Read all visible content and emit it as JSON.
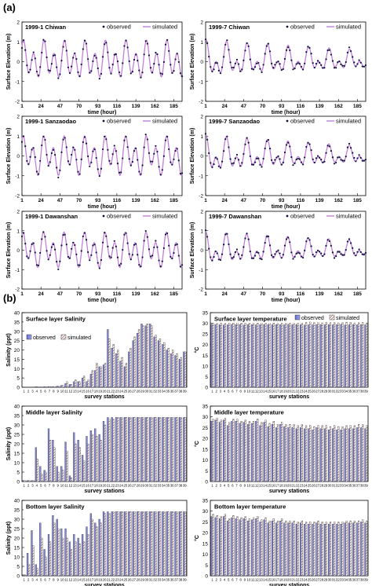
{
  "figure": {
    "section_a_label": "(a)",
    "section_b_label": "(b)"
  },
  "elevation_common": {
    "ylabel": "Surface Elevation (m)",
    "xlabel": "time (hour)",
    "x_ticks": [
      1,
      24,
      47,
      70,
      93,
      116,
      139,
      162,
      185
    ],
    "y_ticks": [
      -2,
      -1,
      0,
      1,
      2
    ],
    "legend": [
      "observed",
      "simulated"
    ],
    "colors": {
      "observed": "#101040",
      "simulated": "#c080d8"
    }
  },
  "salinity_common": {
    "ylabel": "Salinity (ppt)",
    "xlabel": "survey stations",
    "y_ticks": [
      0,
      5,
      10,
      15,
      20,
      25,
      30,
      35,
      40
    ],
    "legend": [
      "observed",
      "simulated"
    ]
  },
  "temperature_common": {
    "ylabel": "°C",
    "xlabel": "survey stations",
    "y_ticks": [
      0,
      5,
      10,
      15,
      20,
      25,
      30,
      35
    ],
    "legend": [
      "observed",
      "simulated"
    ]
  },
  "station_labels": [
    "1",
    "2",
    "3",
    "4",
    "5",
    "6",
    "7",
    "8",
    "9",
    "10",
    "11",
    "12",
    "13",
    "14",
    "15",
    "16",
    "17",
    "18",
    "19",
    "20",
    "21",
    "22",
    "23",
    "24",
    "25",
    "26",
    "27",
    "28",
    "29",
    "30",
    "31",
    "32",
    "33",
    "34",
    "35",
    "36",
    "37",
    "38",
    "39"
  ],
  "chart_data": [
    {
      "type": "line",
      "title": "1999-1 Chiwan",
      "xlim": [
        1,
        195
      ],
      "ylim": [
        -2,
        2
      ],
      "series": [
        {
          "name": "observed",
          "params": {
            "mean": 0.05,
            "k1": 0.35,
            "m2": 0.7,
            "phase1": 0.6,
            "phase2": 0.2,
            "noise": 0.12
          }
        },
        {
          "name": "simulated",
          "params": {
            "mean": 0.05,
            "k1": 0.35,
            "m2": 0.7,
            "phase1": 0.6,
            "phase2": 0.2,
            "noise": 0
          }
        }
      ]
    },
    {
      "type": "line",
      "title": "1999-7 Chiwan",
      "xlim": [
        1,
        195
      ],
      "ylim": [
        -2,
        2
      ],
      "series": [
        {
          "name": "observed",
          "params": {
            "mean": 0.05,
            "k1": 0.55,
            "m2": 0.5,
            "phase1": 1.1,
            "phase2": 0.8,
            "noise": 0.12,
            "decay": 0.5
          }
        },
        {
          "name": "simulated",
          "params": {
            "mean": 0.05,
            "k1": 0.55,
            "m2": 0.5,
            "phase1": 1.1,
            "phase2": 0.8,
            "noise": 0,
            "decay": 0.5
          }
        }
      ]
    },
    {
      "type": "line",
      "title": "1999-1 Sanzaodao",
      "xlim": [
        1,
        195
      ],
      "ylim": [
        -2,
        2
      ],
      "series": [
        {
          "name": "observed",
          "params": {
            "mean": 0.0,
            "k1": 0.4,
            "m2": 0.7,
            "phase1": 0.3,
            "phase2": 0.5,
            "noise": 0.12
          }
        },
        {
          "name": "simulated",
          "params": {
            "mean": 0.0,
            "k1": 0.4,
            "m2": 0.7,
            "phase1": 0.3,
            "phase2": 0.5,
            "noise": 0
          }
        }
      ]
    },
    {
      "type": "line",
      "title": "1999-7 Sanzaodao",
      "xlim": [
        1,
        195
      ],
      "ylim": [
        -2,
        2
      ],
      "series": [
        {
          "name": "observed",
          "params": {
            "mean": 0.0,
            "k1": 0.55,
            "m2": 0.5,
            "phase1": 1.2,
            "phase2": 0.9,
            "noise": 0.12,
            "decay": 0.55
          }
        },
        {
          "name": "simulated",
          "params": {
            "mean": 0.0,
            "k1": 0.55,
            "m2": 0.5,
            "phase1": 1.2,
            "phase2": 0.9,
            "noise": 0,
            "decay": 0.55
          }
        }
      ]
    },
    {
      "type": "line",
      "title": "1999-1 Dawanshan",
      "xlim": [
        1,
        195
      ],
      "ylim": [
        -2,
        2
      ],
      "series": [
        {
          "name": "observed",
          "params": {
            "mean": 0.0,
            "k1": 0.35,
            "m2": 0.65,
            "phase1": 0.4,
            "phase2": 0.6,
            "noise": 0.1
          }
        },
        {
          "name": "simulated",
          "params": {
            "mean": 0.0,
            "k1": 0.35,
            "m2": 0.65,
            "phase1": 0.4,
            "phase2": 0.6,
            "noise": 0
          }
        }
      ]
    },
    {
      "type": "line",
      "title": "1999-7 Dawanshan",
      "xlim": [
        1,
        195
      ],
      "ylim": [
        -2,
        2
      ],
      "series": [
        {
          "name": "observed",
          "params": {
            "mean": 0.0,
            "k1": 0.5,
            "m2": 0.45,
            "phase1": 1.3,
            "phase2": 1.0,
            "noise": 0.1,
            "decay": 0.5
          }
        },
        {
          "name": "simulated",
          "params": {
            "mean": 0.0,
            "k1": 0.5,
            "m2": 0.45,
            "phase1": 1.3,
            "phase2": 1.0,
            "noise": 0,
            "decay": 0.5
          }
        }
      ]
    },
    {
      "type": "bar",
      "title": "Surface layer Salinity",
      "ylim": [
        0,
        40
      ],
      "series": [
        {
          "name": "observed",
          "values": [
            0,
            0,
            0,
            0.3,
            0.2,
            0.3,
            0.4,
            0.4,
            0.6,
            1,
            2,
            1.5,
            3,
            3,
            5,
            3,
            7,
            9,
            11,
            12,
            31,
            21,
            18,
            14,
            11,
            19,
            25,
            29,
            34,
            33,
            34,
            27,
            25,
            23,
            20,
            18,
            17,
            15,
            19
          ]
        },
        {
          "name": "simulated",
          "values": [
            0,
            0,
            0,
            0.3,
            0.2,
            0.3,
            0.4,
            0.4,
            0.6,
            1,
            3,
            1.5,
            4,
            3,
            6,
            4,
            9,
            13,
            11,
            13,
            26,
            23,
            20,
            16,
            13,
            21,
            27,
            31,
            33,
            34,
            33,
            28,
            26,
            24,
            21,
            20,
            18,
            16,
            19
          ]
        }
      ]
    },
    {
      "type": "bar",
      "title": "Surface layer temperature",
      "ylim": [
        0,
        35
      ],
      "series": [
        {
          "name": "observed",
          "values": [
            29.5,
            29.4,
            29.3,
            29.2,
            29.3,
            29.5,
            29.4,
            29.4,
            29.2,
            29.4,
            29.4,
            29.3,
            29.3,
            29.4,
            29.4,
            29.3,
            29.4,
            29.4,
            29.3,
            29.5,
            29.3,
            29.4,
            29.3,
            29.2,
            29.3,
            29.3,
            29.4,
            29.4,
            29.3,
            29.4,
            29.3,
            29.4,
            29.5,
            29.2,
            29.3,
            29.4,
            29.3,
            29.4,
            29.3
          ]
        },
        {
          "name": "simulated",
          "values": [
            30.2,
            30.5,
            30.1,
            30.3,
            30.4,
            30.2,
            30.5,
            30.2,
            30.1,
            30.3,
            30.4,
            30.2,
            30.5,
            30.3,
            30.4,
            30.2,
            30.6,
            30.3,
            30.2,
            30.4,
            30.5,
            30.3,
            30.2,
            30.4,
            30.6,
            30.3,
            30.4,
            30.2,
            30.5,
            30.3,
            30.4,
            30.2,
            30.3,
            30.5,
            30.4,
            30.2,
            30.3,
            30.4,
            30.2
          ]
        }
      ]
    },
    {
      "type": "bar",
      "title": "Middle layer Salinity",
      "ylim": [
        0,
        40
      ],
      "series": [
        {
          "name": "observed",
          "values": [
            0.5,
            0.5,
            0.5,
            18,
            8,
            6,
            28,
            22,
            8,
            8,
            21,
            3,
            26,
            22,
            14,
            24,
            27,
            28,
            25,
            32,
            34,
            34,
            34,
            34,
            34,
            34,
            34,
            34,
            34,
            34,
            34,
            34,
            34,
            34,
            34,
            34,
            34,
            34,
            34
          ]
        },
        {
          "name": "simulated",
          "values": [
            0.5,
            0.5,
            0.5,
            12,
            4,
            5,
            22,
            18,
            5,
            6,
            16,
            2,
            20,
            18,
            11,
            20,
            25,
            24,
            22,
            30,
            33,
            33,
            34,
            34,
            34,
            34,
            34,
            34,
            34,
            34,
            34,
            34,
            34,
            34,
            34,
            34,
            34,
            34,
            34
          ]
        }
      ]
    },
    {
      "type": "bar",
      "title": "Middle layer temperature",
      "ylim": [
        0,
        35
      ],
      "series": [
        {
          "name": "observed",
          "values": [
            28,
            28.5,
            27.5,
            28.5,
            26,
            28,
            28,
            27,
            27.5,
            26.5,
            27,
            28,
            26,
            27.5,
            25.5,
            26.5,
            25,
            26.5,
            25.5,
            25,
            25,
            24.5,
            25,
            24.5,
            24.5,
            24,
            25,
            24.5,
            24.5,
            24,
            24.5,
            24,
            24,
            24.5,
            24.5,
            24.5,
            25,
            25,
            24.5
          ]
        },
        {
          "name": "simulated",
          "values": [
            29,
            29.5,
            28.5,
            29.5,
            27.5,
            29,
            29,
            28,
            28.5,
            28,
            28,
            29,
            27.5,
            28.5,
            27,
            28,
            26.5,
            27.5,
            26.5,
            26.5,
            26.5,
            26,
            26.5,
            26,
            26,
            25.5,
            26,
            26,
            26,
            25.5,
            26,
            25.5,
            25.5,
            26,
            26,
            26,
            26.5,
            26.5,
            26
          ]
        }
      ]
    },
    {
      "type": "bar",
      "title": "Bottom layer Salinity",
      "ylim": [
        0,
        40
      ],
      "series": [
        {
          "name": "observed",
          "values": [
            0.5,
            12,
            24,
            6,
            28,
            14,
            22,
            32,
            30,
            25,
            25,
            18,
            22,
            20,
            22,
            26,
            33,
            28,
            30,
            34,
            34,
            34,
            34,
            34,
            34,
            34,
            34,
            34,
            34,
            34,
            34,
            34,
            34,
            34,
            34,
            34,
            34,
            34,
            34
          ]
        },
        {
          "name": "simulated",
          "values": [
            0.5,
            6,
            16,
            4,
            20,
            10,
            18,
            28,
            25,
            20,
            20,
            14,
            18,
            17,
            18,
            22,
            30,
            26,
            28,
            33,
            33,
            34,
            34,
            34,
            34,
            34,
            34,
            34,
            34,
            34,
            34,
            34,
            34,
            34,
            34,
            34,
            34,
            34,
            34
          ]
        }
      ]
    },
    {
      "type": "bar",
      "title": "Bottom layer temperature",
      "ylim": [
        0,
        35
      ],
      "series": [
        {
          "name": "observed",
          "values": [
            27.5,
            27,
            26.5,
            27.5,
            25.5,
            27,
            26.5,
            26,
            26.5,
            25.5,
            26,
            26.5,
            25,
            26,
            24.5,
            25.5,
            24.5,
            25.5,
            24.5,
            24.5,
            24.5,
            24,
            24.5,
            24,
            24,
            24,
            24.5,
            24,
            24,
            24,
            24,
            24,
            24,
            24.5,
            24.5,
            24.5,
            24.5,
            25,
            24.5
          ]
        },
        {
          "name": "simulated",
          "values": [
            28.5,
            28,
            27.5,
            28.5,
            26.5,
            28,
            27.5,
            27,
            27.5,
            26.5,
            27,
            27.5,
            26,
            27,
            25.5,
            26.5,
            25.5,
            26.5,
            25.5,
            25.5,
            25.5,
            25,
            25.5,
            25,
            25,
            25,
            25.5,
            25,
            25,
            25,
            25,
            25,
            25,
            25.5,
            25.5,
            25.5,
            25.5,
            26,
            25.5
          ]
        }
      ]
    }
  ]
}
